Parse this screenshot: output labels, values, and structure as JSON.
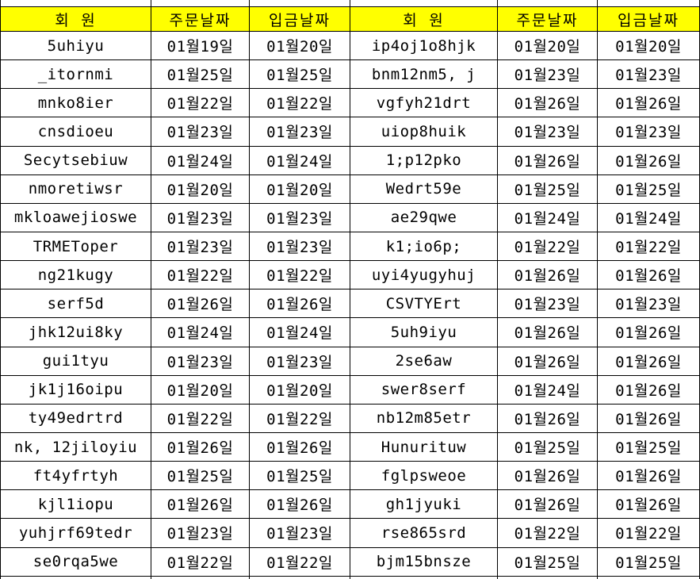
{
  "table": {
    "description_colors": {
      "header_bg": "#FFFF00",
      "border": "#000000",
      "text": "#000000"
    },
    "headers": [
      "회 원",
      "주문날짜",
      "입금날짜",
      "회 원",
      "주문날짜",
      "입금날짜"
    ],
    "column_kinds": [
      "member",
      "order-date",
      "deposit-date",
      "member",
      "order-date",
      "deposit-date"
    ],
    "rows": [
      [
        "5uhiyu",
        "01월19일",
        "01월20일",
        "ip4oj1o8hjk",
        "01월20일",
        "01월20일"
      ],
      [
        "_itornmi",
        "01월25일",
        "01월25일",
        "bnm12nm5, j",
        "01월23일",
        "01월23일"
      ],
      [
        "mnko8ier",
        "01월22일",
        "01월22일",
        "vgfyh21drt",
        "01월26일",
        "01월26일"
      ],
      [
        "cnsdioeu",
        "01월23일",
        "01월23일",
        "uiop8huik",
        "01월23일",
        "01월23일"
      ],
      [
        "Secytsebiuw",
        "01월24일",
        "01월24일",
        "1;p12pko",
        "01월26일",
        "01월26일"
      ],
      [
        "nmoretiwsr",
        "01월20일",
        "01월20일",
        "Wedrt59e",
        "01월25일",
        "01월25일"
      ],
      [
        "mkloawejioswe",
        "01월23일",
        "01월23일",
        "ae29qwe",
        "01월24일",
        "01월24일"
      ],
      [
        "TRMEToper",
        "01월23일",
        "01월23일",
        "k1;io6p;",
        "01월22일",
        "01월22일"
      ],
      [
        "ng21kugy",
        "01월22일",
        "01월22일",
        "uyi4yugyhuj",
        "01월26일",
        "01월26일"
      ],
      [
        "serf5d",
        "01월26일",
        "01월26일",
        "CSVTYErt",
        "01월23일",
        "01월23일"
      ],
      [
        "jhk12ui8ky",
        "01월24일",
        "01월24일",
        "5uh9iyu",
        "01월26일",
        "01월26일"
      ],
      [
        "gui1tyu",
        "01월23일",
        "01월23일",
        "2se6aw",
        "01월26일",
        "01월26일"
      ],
      [
        "jk1j16oipu",
        "01월20일",
        "01월20일",
        "swer8serf",
        "01월24일",
        "01월26일"
      ],
      [
        "ty49edrtrd",
        "01월22일",
        "01월22일",
        "nb12m85etr",
        "01월26일",
        "01월26일"
      ],
      [
        "nk, 12jiloyiu",
        "01월26일",
        "01월26일",
        "Hunurituw",
        "01월25일",
        "01월25일"
      ],
      [
        "ft4yfrtyh",
        "01월25일",
        "01월25일",
        "fglpsweoe",
        "01월26일",
        "01월26일"
      ],
      [
        "kjl1iopu",
        "01월26일",
        "01월26일",
        "gh1jyuki",
        "01월26일",
        "01월26일"
      ],
      [
        "yuhjrf69tedr",
        "01월23일",
        "01월23일",
        "rse865srd",
        "01월22일",
        "01월22일"
      ],
      [
        "se0rqa5we",
        "01월22일",
        "01월22일",
        "bjm15bnsze",
        "01월25일",
        "01월25일"
      ]
    ]
  }
}
